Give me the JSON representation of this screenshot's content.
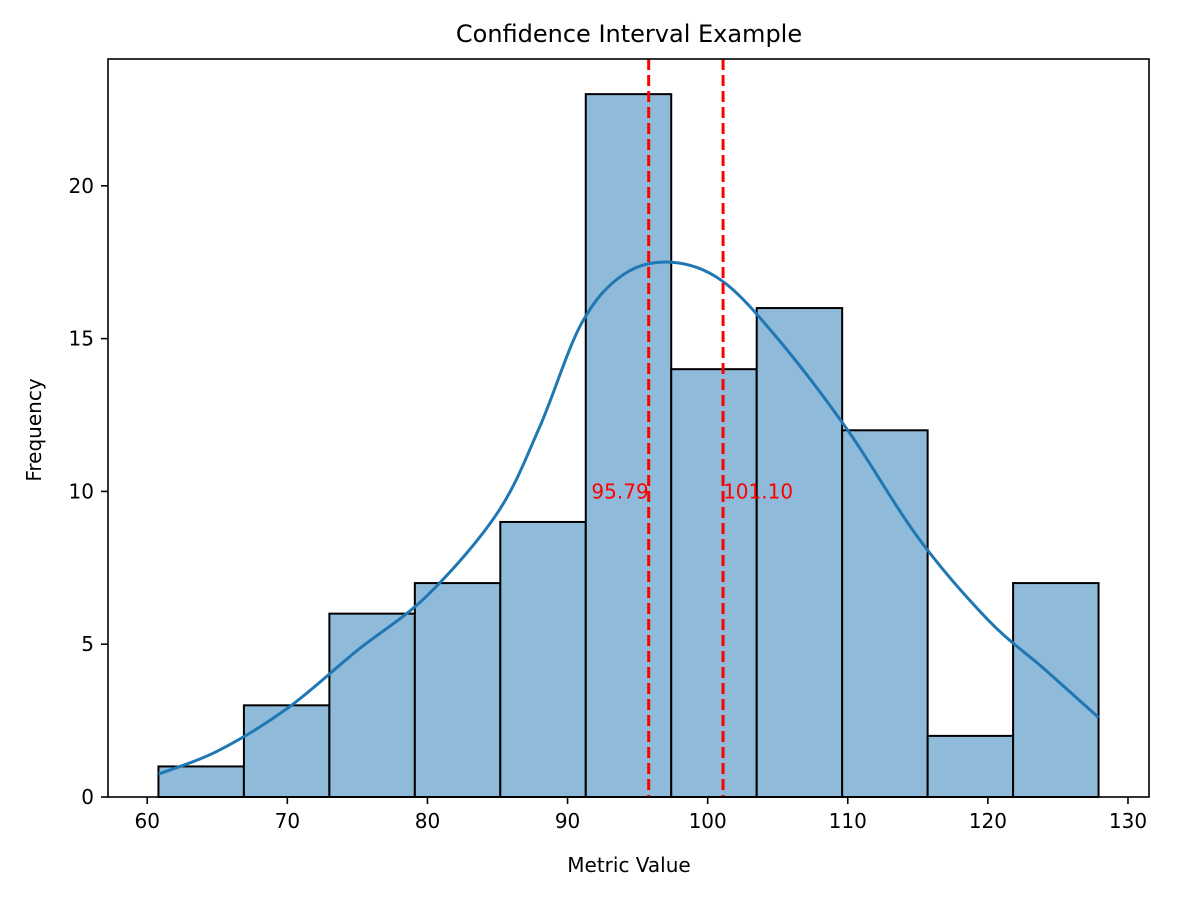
{
  "chart_data": {
    "type": "bar",
    "title": "Confidence Interval Example",
    "xlabel": "Metric Value",
    "ylabel": "Frequency",
    "xlim": [
      57.2,
      131.5
    ],
    "ylim": [
      0,
      24.15
    ],
    "x_ticks": [
      60,
      70,
      80,
      90,
      100,
      110,
      120,
      130
    ],
    "y_ticks": [
      0,
      5,
      10,
      15,
      20
    ],
    "bins": [
      {
        "start": 60.8,
        "end": 66.9,
        "count": 1
      },
      {
        "start": 66.9,
        "end": 73.0,
        "count": 3
      },
      {
        "start": 73.0,
        "end": 79.1,
        "count": 6
      },
      {
        "start": 79.1,
        "end": 85.2,
        "count": 7
      },
      {
        "start": 85.2,
        "end": 91.3,
        "count": 9
      },
      {
        "start": 91.3,
        "end": 97.4,
        "count": 23
      },
      {
        "start": 97.4,
        "end": 103.5,
        "count": 14
      },
      {
        "start": 103.5,
        "end": 109.6,
        "count": 16
      },
      {
        "start": 109.6,
        "end": 115.7,
        "count": 12
      },
      {
        "start": 115.7,
        "end": 121.8,
        "count": 2
      },
      {
        "start": 121.8,
        "end": 127.9,
        "count": 7
      }
    ],
    "kde": {
      "x": [
        60.8,
        65,
        70,
        75,
        80,
        85,
        88,
        91,
        94,
        97.4,
        101,
        105,
        110,
        115,
        120,
        124,
        127.9
      ],
      "y": [
        0.75,
        1.5,
        2.9,
        4.8,
        6.6,
        9.3,
        12.1,
        15.5,
        17.1,
        17.5,
        16.9,
        15.0,
        12.0,
        8.5,
        5.8,
        4.2,
        2.6
      ]
    },
    "ci_lines": [
      {
        "value": 95.79,
        "label": "95.79"
      },
      {
        "value": 101.1,
        "label": "101.10"
      }
    ],
    "ci_label_y": 10,
    "grid": false,
    "colors": {
      "bar_fill": "#8fbad9",
      "bar_edge": "#000000",
      "kde_line": "#1f77b4",
      "ci_line": "#ff0000"
    }
  }
}
